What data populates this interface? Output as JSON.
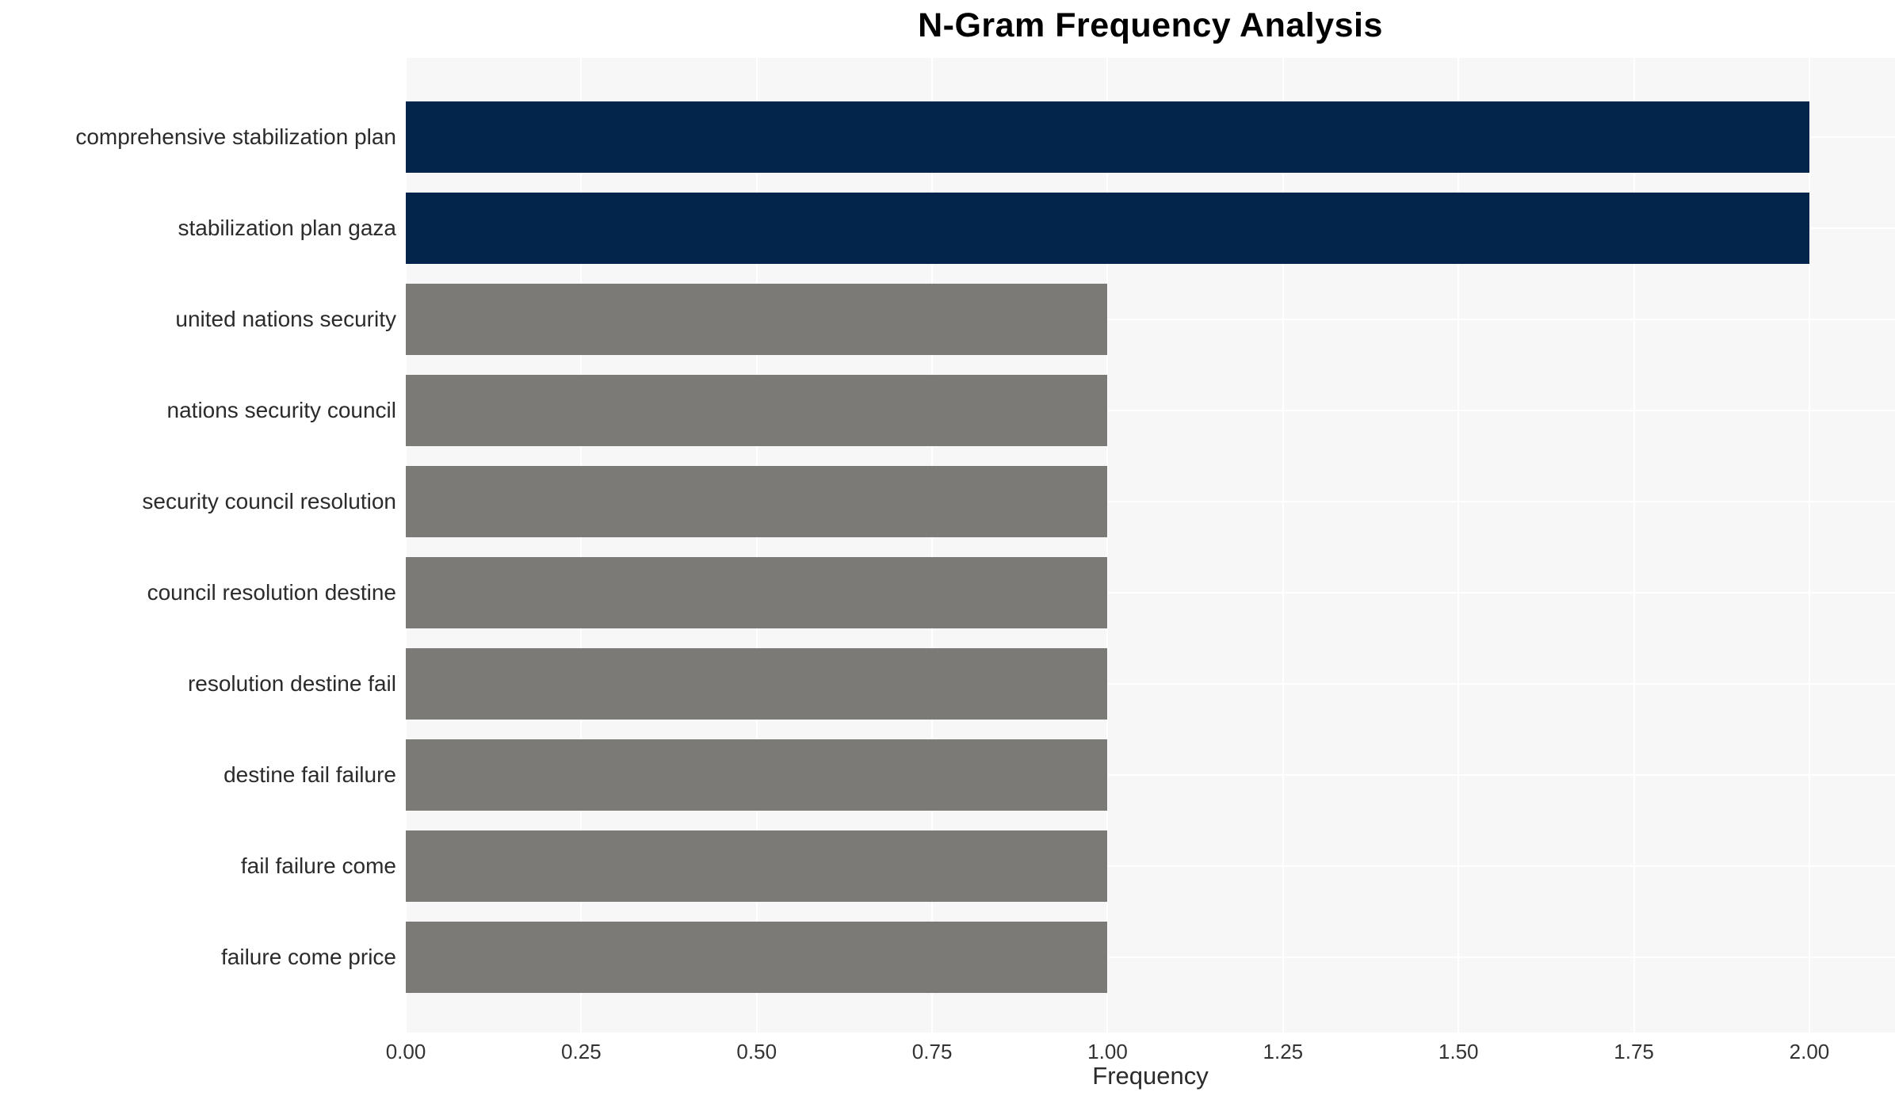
{
  "chart_data": {
    "type": "bar",
    "orientation": "horizontal",
    "title": "N-Gram Frequency Analysis",
    "xlabel": "Frequency",
    "ylabel": "",
    "categories": [
      "comprehensive stabilization plan",
      "stabilization plan gaza",
      "united nations security",
      "nations security council",
      "security council resolution",
      "council resolution destine",
      "resolution destine fail",
      "destine fail failure",
      "fail failure come",
      "failure come price"
    ],
    "values": [
      2,
      2,
      1,
      1,
      1,
      1,
      1,
      1,
      1,
      1
    ],
    "bar_colors": [
      "#03254c",
      "#03254c",
      "#7b7a77",
      "#7b7a77",
      "#7b7a77",
      "#7b7a77",
      "#7b7a77",
      "#7b7a77",
      "#7b7a77",
      "#7b7a77"
    ],
    "xticks": {
      "labels": [
        "0.00",
        "0.25",
        "0.50",
        "0.75",
        "1.00",
        "1.25",
        "1.50",
        "1.75",
        "2.00"
      ],
      "values": [
        0,
        0.25,
        0.5,
        0.75,
        1.0,
        1.25,
        1.5,
        1.75,
        2.0
      ]
    },
    "xlim": [
      0,
      2.122
    ],
    "grid": true,
    "legend": "none",
    "colors": {
      "highlight_bar": "#03254c",
      "default_bar": "#7b7a77",
      "plot_background": "#f7f7f7",
      "gridline": "#ffffff",
      "title_text": "#000000",
      "label_text": "#2b2b2b",
      "tick_text": "#333333"
    }
  }
}
